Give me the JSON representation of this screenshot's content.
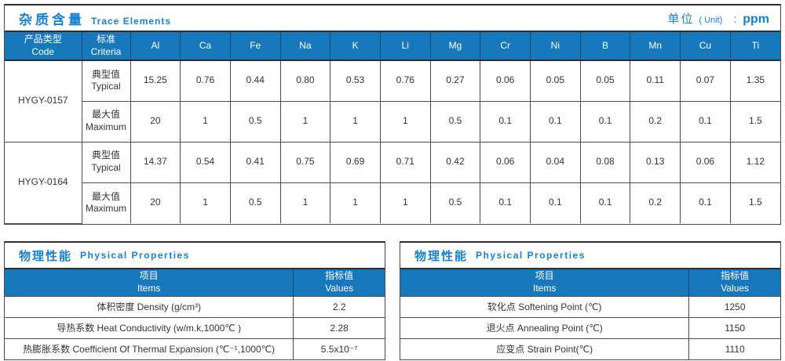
{
  "trace": {
    "title_zh": "杂质含量",
    "title_en": "Trace Elements",
    "unit": {
      "zh": "单位",
      "paren": "( Unit)",
      "colon": ":",
      "value": "ppm"
    },
    "col_code": {
      "zh": "产品类型",
      "en": "Code"
    },
    "col_criteria": {
      "zh": "标准",
      "en": "Criteria"
    },
    "elements": [
      "Al",
      "Ca",
      "Fe",
      "Na",
      "K",
      "Li",
      "Mg",
      "Cr",
      "Ni",
      "B",
      "Mn",
      "Cu",
      "Ti"
    ],
    "products": [
      {
        "code": "HYGY-0157",
        "rows": [
          {
            "label_zh": "典型值",
            "label_en": "Typical",
            "values": [
              "15.25",
              "0.76",
              "0.44",
              "0.80",
              "0.53",
              "0.76",
              "0.27",
              "0.06",
              "0.05",
              "0.05",
              "0.11",
              "0.07",
              "1.35"
            ]
          },
          {
            "label_zh": "最大值",
            "label_en": "Maximum",
            "values": [
              "20",
              "1",
              "0.5",
              "1",
              "1",
              "1",
              "0.5",
              "0.1",
              "0.1",
              "0.1",
              "0.2",
              "0.1",
              "1.5"
            ]
          }
        ]
      },
      {
        "code": "HYGY-0164",
        "rows": [
          {
            "label_zh": "典型值",
            "label_en": "Typical",
            "values": [
              "14.37",
              "0.54",
              "0.41",
              "0.75",
              "0.69",
              "0.71",
              "0.42",
              "0.06",
              "0.04",
              "0.08",
              "0.13",
              "0.06",
              "1.12"
            ]
          },
          {
            "label_zh": "最大值",
            "label_en": "Maximum",
            "values": [
              "20",
              "1",
              "0.5",
              "1",
              "1",
              "1",
              "0.5",
              "0.1",
              "0.1",
              "0.1",
              "0.2",
              "0.1",
              "1.5"
            ]
          }
        ]
      }
    ]
  },
  "physical": [
    {
      "title_zh": "物理性能",
      "title_en": "Physical Properties",
      "col_items": {
        "zh": "项目",
        "en": "Items"
      },
      "col_values": {
        "zh": "指标值",
        "en": "Values"
      },
      "rows": [
        {
          "item": "体积密度 Density (g/cm³)",
          "value": "2.2"
        },
        {
          "item": "导热系数 Heat Conductivity (w/m.k,1000℃ )",
          "value": "2.28"
        },
        {
          "item": "热膨胀系数 Coefficient Of Thermal Expansion (℃⁻¹,1000℃)",
          "value": "5.5x10⁻⁷"
        }
      ]
    },
    {
      "title_zh": "物理性能",
      "title_en": "Physical Properties",
      "col_items": {
        "zh": "项目",
        "en": "Items"
      },
      "col_values": {
        "zh": "指标值",
        "en": "Values"
      },
      "rows": [
        {
          "item": "软化点 Softening Point (℃)",
          "value": "1250"
        },
        {
          "item": "退火点 Annealing Point (℃)",
          "value": "1150"
        },
        {
          "item": "应变点 Strain Point(℃)",
          "value": "1110"
        }
      ]
    }
  ],
  "colors": {
    "header_blue": "#1878bc",
    "title_blue": "#1581cf",
    "header_text": "#ffffff",
    "body_text": "#333333",
    "border_dark": "#2e2e2e",
    "border_cell": "#4d4d4d"
  }
}
